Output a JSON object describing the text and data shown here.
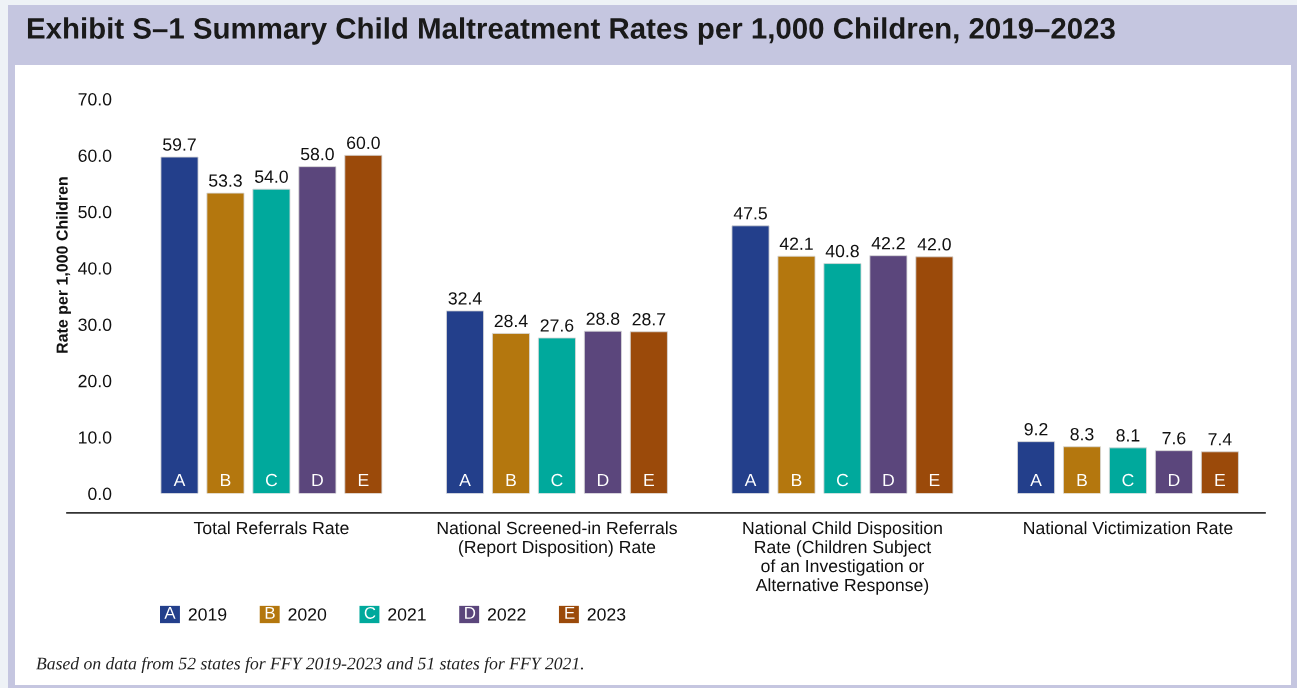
{
  "chart_data": {
    "type": "bar",
    "title": "Exhibit S–1 Summary Child Maltreatment Rates per 1,000 Children, 2019–2023",
    "ylabel": "Rate per 1,000 Children",
    "categories": [
      "Total Referrals Rate",
      "National Screened-in Referrals\n(Report Disposition) Rate",
      "National Child Disposition\nRate (Children Subject\nof an Investigation or\nAlternative Response)",
      "National Victimization Rate"
    ],
    "series": [
      {
        "name": "2019",
        "color": "#233f8b",
        "values": [
          59.7,
          32.4,
          47.5,
          9.2
        ],
        "value_labels": [
          "59.7",
          "32.4",
          "47.5",
          "9.2"
        ]
      },
      {
        "name": "2020",
        "color": "#b4770e",
        "values": [
          53.3,
          28.4,
          42.1,
          8.3
        ],
        "value_labels": [
          "53.3",
          "28.4",
          "42.1",
          "8.3"
        ]
      },
      {
        "name": "2021",
        "color": "#00a99c",
        "values": [
          54.0,
          27.6,
          40.8,
          8.1
        ],
        "value_labels": [
          "54.0",
          "27.6",
          "40.8",
          "8.1"
        ]
      },
      {
        "name": "2022",
        "color": "#5b467c",
        "values": [
          58.0,
          28.8,
          42.2,
          7.6
        ],
        "value_labels": [
          "58.0",
          "28.8",
          "42.2",
          "7.6"
        ]
      },
      {
        "name": "2023",
        "color": "#9b4a0a",
        "values": [
          60.0,
          28.7,
          42.0,
          7.4
        ],
        "value_labels": [
          "60.0",
          "28.7",
          "42.0",
          "7.4"
        ]
      }
    ],
    "ylim": [
      0,
      70
    ],
    "yticks": [
      {
        "value": 0,
        "label": "0.0"
      },
      {
        "value": 10,
        "label": "10.0"
      },
      {
        "value": 20,
        "label": "20.0"
      },
      {
        "value": 30,
        "label": "30.0"
      },
      {
        "value": 40,
        "label": "40.0"
      },
      {
        "value": 50,
        "label": "50.0"
      },
      {
        "value": 60,
        "label": "60.0"
      },
      {
        "value": 70,
        "label": "70.0"
      }
    ],
    "grid": false,
    "legend": "bottom left",
    "annotations": [
      "A",
      "B",
      "C",
      "D",
      "E",
      "Based on data from 52 states for FFY 2019-2023 and 51 states for FFY 2021."
    ]
  }
}
